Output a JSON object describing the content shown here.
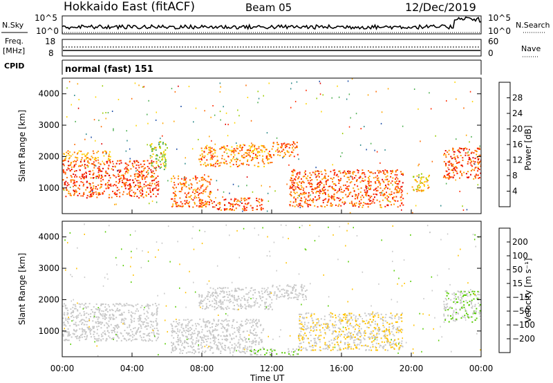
{
  "header": {
    "title": "Hokkaido East (fitACF)",
    "beam": "Beam 05",
    "date": "12/Dec/2019"
  },
  "noise_panel": {
    "left_label": "N.Sky",
    "left_ticks": [
      "10^5",
      "10^0"
    ],
    "right_ticks": [
      "10^5",
      "10^0"
    ],
    "right_label": "N.Search"
  },
  "freq_panel": {
    "label_line1": "Freq.",
    "label_line2": "[MHz]",
    "left_ticks": [
      "18",
      "8"
    ],
    "right_ticks": [
      "60",
      "0"
    ],
    "right_label": "Nave"
  },
  "cpid_panel": {
    "label": "CPID",
    "text": "normal (fast) 151"
  },
  "colors": {
    "power": [
      "#0000ff",
      "#1f4fa8",
      "#2e8b8b",
      "#4caf50",
      "#99cc00",
      "#ffd400",
      "#ffa500",
      "#ff6a00",
      "#ff2a00",
      "#e00000"
    ],
    "velocity": [
      "#ff0000",
      "#ff5a00",
      "#ff9900",
      "#ffc200",
      "#c8c8c8",
      "#c8c8c8",
      "#55cc00",
      "#2e8b57",
      "#2f57a8",
      "#1040ff"
    ],
    "gray": "#c8c8c8"
  },
  "chart_data": [
    {
      "type": "heatmap",
      "name": "power",
      "xlabel": "",
      "ylabel": "Slant Range [km]",
      "x_range_ut_hours": [
        0,
        24
      ],
      "ylim": [
        180,
        4500
      ],
      "y_ticks": [
        "1000",
        "2000",
        "3000",
        "4000"
      ],
      "colorbar": {
        "label": "Power [dB]",
        "ticks": [
          "28",
          "24",
          "20",
          "16",
          "12",
          "8",
          "4"
        ],
        "range": [
          0,
          32
        ]
      },
      "echo_regions": [
        {
          "ut": [
            0.0,
            5.5
          ],
          "range": [
            700,
            1900
          ],
          "value": 26
        },
        {
          "ut": [
            0.0,
            2.8
          ],
          "range": [
            1900,
            2200
          ],
          "value": 21
        },
        {
          "ut": [
            5.0,
            6.0
          ],
          "range": [
            1600,
            2500
          ],
          "value": 14
        },
        {
          "ut": [
            6.2,
            8.5
          ],
          "range": [
            400,
            1400
          ],
          "value": 24
        },
        {
          "ut": [
            8.5,
            11.5
          ],
          "range": [
            300,
            700
          ],
          "value": 26
        },
        {
          "ut": [
            7.8,
            12.0
          ],
          "range": [
            1700,
            2400
          ],
          "value": 22
        },
        {
          "ut": [
            12.0,
            13.5
          ],
          "range": [
            2000,
            2500
          ],
          "value": 24
        },
        {
          "ut": [
            13.0,
            19.5
          ],
          "range": [
            400,
            1600
          ],
          "value": 25
        },
        {
          "ut": [
            20.0,
            21.0
          ],
          "range": [
            900,
            1500
          ],
          "value": 18
        },
        {
          "ut": [
            21.8,
            24.0
          ],
          "range": [
            1300,
            2300
          ],
          "value": 26
        }
      ]
    },
    {
      "type": "heatmap",
      "name": "velocity",
      "xlabel": "Time UT",
      "ylabel": "Slant Range [km]",
      "x_range_ut_hours": [
        0,
        24
      ],
      "x_ticks": [
        "00:00",
        "04:00",
        "08:00",
        "12:00",
        "16:00",
        "20:00",
        "00:00"
      ],
      "ylim": [
        180,
        4500
      ],
      "y_ticks": [
        "1000",
        "2000",
        "3000",
        "4000"
      ],
      "colorbar": {
        "label": "Velocity [m s⁻¹]",
        "ticks": [
          "200",
          "100",
          "50",
          "15",
          "−15",
          "−50",
          "−100",
          "−200"
        ],
        "range": [
          -250,
          250
        ]
      },
      "echo_regions": [
        {
          "ut": [
            0.0,
            5.5
          ],
          "range": [
            700,
            1900
          ],
          "value": 0
        },
        {
          "ut": [
            6.2,
            11.5
          ],
          "range": [
            300,
            1400
          ],
          "value": 0
        },
        {
          "ut": [
            7.8,
            12.0
          ],
          "range": [
            1700,
            2400
          ],
          "value": 0
        },
        {
          "ut": [
            12.0,
            14.0
          ],
          "range": [
            2000,
            2500
          ],
          "value": 0
        },
        {
          "ut": [
            13.5,
            19.5
          ],
          "range": [
            400,
            1600
          ],
          "value": -45
        },
        {
          "ut": [
            10.5,
            13.5
          ],
          "range": [
            250,
            450
          ],
          "value": 45
        },
        {
          "ut": [
            21.8,
            24.0
          ],
          "range": [
            1300,
            2300
          ],
          "value": 45
        }
      ]
    }
  ]
}
